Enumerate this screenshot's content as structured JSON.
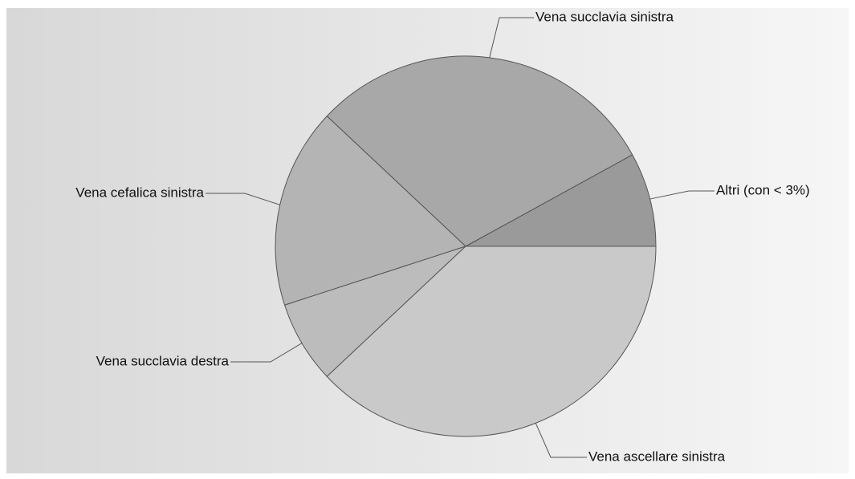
{
  "chart_data": {
    "type": "pie",
    "categories": [
      "Altri (con < 3%)",
      "Vena succlavia sinistra",
      "Vena cefalica sinistra",
      "Vena succlavia destra",
      "Vena ascellare sinistra"
    ],
    "values": [
      8,
      30,
      17,
      7,
      38
    ],
    "colors": [
      "#9a9a9a",
      "#a8a8a8",
      "#b4b4b4",
      "#bcbcbc",
      "#c9c9c9"
    ]
  }
}
